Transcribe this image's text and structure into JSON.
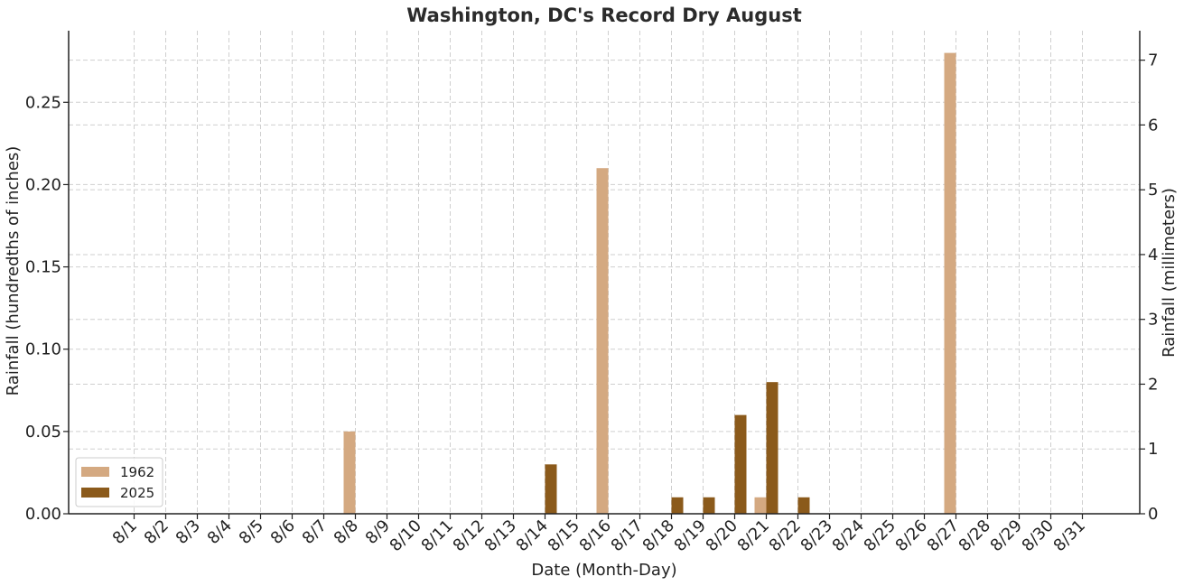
{
  "chart_data": {
    "type": "bar",
    "title": "Washington, DC's Record Dry August",
    "xlabel": "Date (Month-Day)",
    "ylabel": "Rainfall (hundredths of inches)",
    "y2label": "Rainfall (millimeters)",
    "categories": [
      "8/1",
      "8/2",
      "8/3",
      "8/4",
      "8/5",
      "8/6",
      "8/7",
      "8/8",
      "8/9",
      "8/10",
      "8/11",
      "8/12",
      "8/13",
      "8/14",
      "8/15",
      "8/16",
      "8/17",
      "8/18",
      "8/19",
      "8/20",
      "8/21",
      "8/22",
      "8/23",
      "8/24",
      "8/25",
      "8/26",
      "8/27",
      "8/28",
      "8/29",
      "8/30",
      "8/31"
    ],
    "series": [
      {
        "name": "1962",
        "color": "#d4a981",
        "values": [
          0,
          0,
          0,
          0,
          0,
          0,
          0,
          0.05,
          0,
          0,
          0,
          0,
          0,
          0,
          0,
          0.21,
          0,
          0,
          0,
          0,
          0.01,
          0,
          0,
          0,
          0,
          0,
          0.28,
          0,
          0,
          0,
          0
        ]
      },
      {
        "name": "2025",
        "color": "#8b5a1b",
        "values": [
          0,
          0,
          0,
          0,
          0,
          0,
          0,
          0,
          0,
          0,
          0,
          0,
          0,
          0.03,
          0,
          0,
          0,
          0.01,
          0.01,
          0.06,
          0.08,
          0.01,
          0,
          0,
          0,
          0,
          0,
          0,
          0,
          0,
          0
        ]
      }
    ],
    "ylim": [
      0,
      0.2935
    ],
    "yticks": [
      "0.00",
      "0.05",
      "0.10",
      "0.15",
      "0.20",
      "0.25"
    ],
    "y2ticks": [
      "0",
      "1",
      "2",
      "3",
      "4",
      "5",
      "6",
      "7"
    ],
    "grid": true,
    "legend": "lower-left"
  }
}
